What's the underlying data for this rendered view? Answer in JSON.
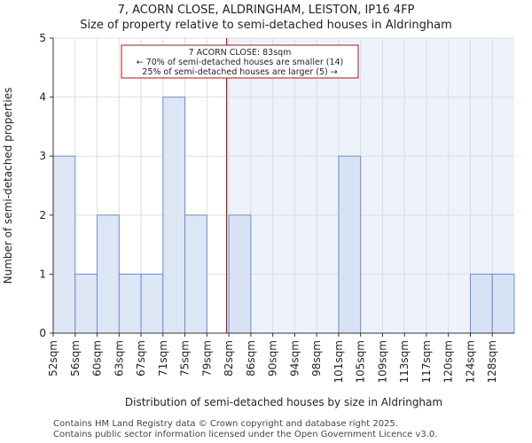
{
  "chart_data": {
    "type": "bar",
    "title": "7, ACORN CLOSE, ALDRINGHAM, LEISTON, IP16 4FP",
    "subtitle": "Size of property relative to semi-detached houses in Aldringham",
    "xlabel": "Distribution of semi-detached houses by size in Aldringham",
    "ylabel": "Number of semi-detached properties",
    "categories": [
      "52sqm",
      "56sqm",
      "60sqm",
      "63sqm",
      "67sqm",
      "71sqm",
      "75sqm",
      "79sqm",
      "82sqm",
      "86sqm",
      "90sqm",
      "94sqm",
      "98sqm",
      "101sqm",
      "105sqm",
      "109sqm",
      "113sqm",
      "117sqm",
      "120sqm",
      "124sqm",
      "128sqm"
    ],
    "values": [
      3,
      1,
      2,
      1,
      1,
      4,
      2,
      0,
      2,
      0,
      0,
      0,
      0,
      3,
      0,
      0,
      0,
      0,
      0,
      1,
      1
    ],
    "ylim": [
      0,
      5
    ],
    "yticks": [
      0,
      1,
      2,
      3,
      4,
      5
    ],
    "grid": true,
    "property_marker_index": 7.9,
    "highlight_from_index": 7.9,
    "annotation": {
      "line1": "7 ACORN CLOSE: 83sqm",
      "line2": "← 70% of semi-detached houses are smaller (14)",
      "line3": "25% of semi-detached houses are larger (5) →"
    },
    "colors": {
      "bar_fill": "#dce6f5",
      "bar_fill_highlight": "#d7e2f4",
      "bar_stroke": "#6f8fc9",
      "highlight_bg": "#eef2fb",
      "marker": "#9b1c1c",
      "grid": "#dedede"
    }
  },
  "footer": {
    "line1": "Contains HM Land Registry data © Crown copyright and database right 2025.",
    "line2": "Contains public sector information licensed under the Open Government Licence v3.0."
  }
}
